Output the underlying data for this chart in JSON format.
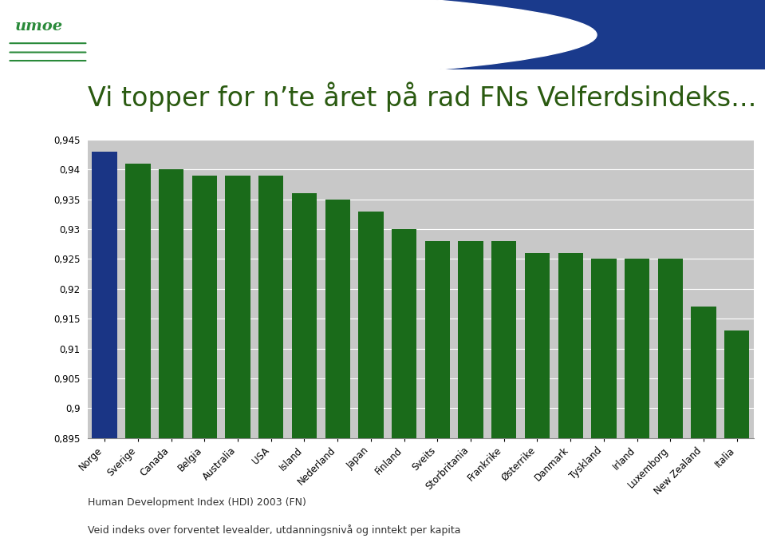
{
  "title": "Vi topper for n’te året på rad FNs Velferdsindeks...",
  "categories": [
    "Norge",
    "Sverige",
    "Canada",
    "Belgia",
    "Australia",
    "USA",
    "Island",
    "Nederland",
    "Japan",
    "Finland",
    "Sveits",
    "Storbritania",
    "Frankrike",
    "Østerrike",
    "Danmark",
    "Tyskland",
    "Irland",
    "Luxemborg",
    "New Zealand",
    "Italia"
  ],
  "values": [
    0.943,
    0.941,
    0.94,
    0.939,
    0.939,
    0.939,
    0.936,
    0.935,
    0.933,
    0.93,
    0.928,
    0.928,
    0.928,
    0.926,
    0.926,
    0.925,
    0.925,
    0.925,
    0.917,
    0.913
  ],
  "bar_colors_dark_green": "#1a6b1a",
  "bar_color_norge": "#1a3585",
  "ylim": [
    0.895,
    0.945
  ],
  "yticks": [
    0.895,
    0.9,
    0.905,
    0.91,
    0.915,
    0.92,
    0.925,
    0.93,
    0.935,
    0.94,
    0.945
  ],
  "ytick_labels": [
    "0,895",
    "0,9",
    "0,905",
    "0,91",
    "0,915",
    "0,92",
    "0,925",
    "0,93",
    "0,935",
    "0,94",
    "0,945"
  ],
  "footnote1": "Human Development Index (HDI) 2003 (FN)",
  "footnote2": "Veid indeks over forventet levealder, utdanningsnivå og inntekt per kapita",
  "plot_bg_color": "#c8c8c8",
  "fig_bg_color": "#ffffff",
  "title_color": "#2a5a10",
  "title_fontsize": 24,
  "bar_width": 0.75,
  "header_blue": "#1a3a8c",
  "logo_green": "#2a8a3a",
  "logo_text": "umoe"
}
